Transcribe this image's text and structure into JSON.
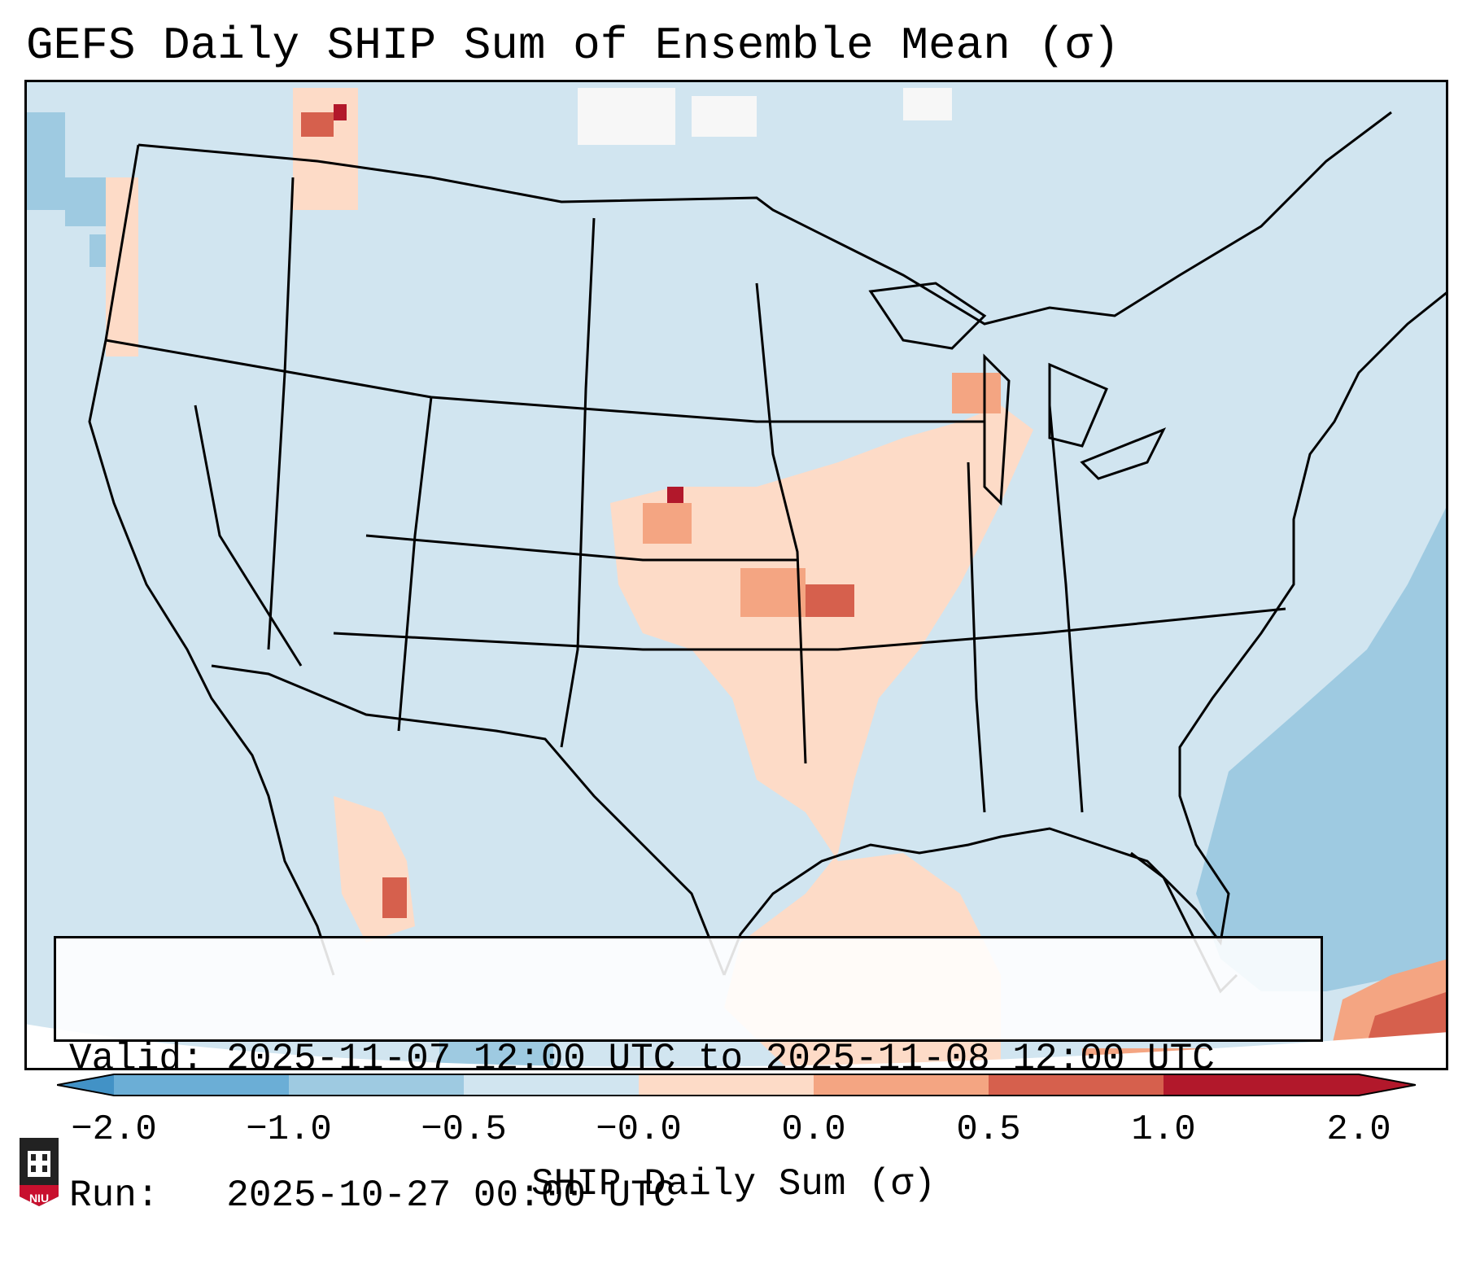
{
  "title": "GEFS Daily SHIP Sum of Ensemble Mean (σ)",
  "info": {
    "valid_line": "Valid: 2025-11-07 12:00 UTC to 2025-11-08 12:00 UTC",
    "run_line": "Run:   2025-10-27 00:00 UTC"
  },
  "colorbar": {
    "label": "SHIP Daily Sum (σ)",
    "ticks": [
      "−2.0",
      "−1.0",
      "−0.5",
      "−0.0",
      "0.0",
      "0.5",
      "1.0",
      "2.0"
    ],
    "colors": [
      "#4292c6",
      "#6baed6",
      "#9ecae1",
      "#d1e5f0",
      "#fddbc7",
      "#f4a582",
      "#d6604d",
      "#b2182b"
    ]
  },
  "logo": {
    "text": "NIU",
    "color": "#c8102e"
  }
}
